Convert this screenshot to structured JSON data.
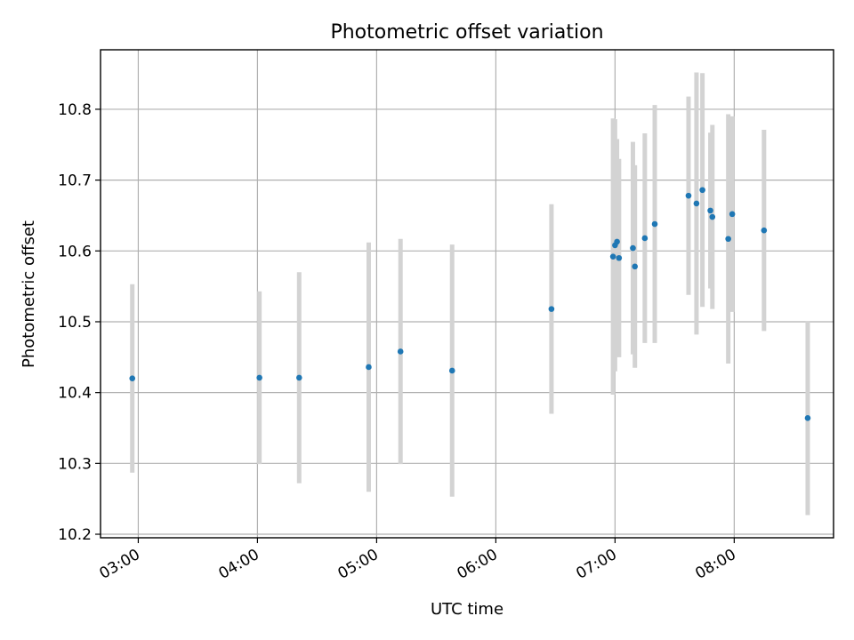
{
  "chart_data": {
    "type": "scatter",
    "title": "Photometric offset variation",
    "xlabel": "UTC time",
    "ylabel": "Photometric offset",
    "xlim": [
      "02:41",
      "08:50"
    ],
    "ylim": [
      10.195,
      10.884
    ],
    "grid": true,
    "x_ticks": [
      "03:00",
      "04:00",
      "05:00",
      "06:00",
      "07:00",
      "08:00"
    ],
    "y_ticks": [
      10.2,
      10.3,
      10.4,
      10.5,
      10.6,
      10.7,
      10.8
    ],
    "point_color": "#1f77b4",
    "errorbar_color": "#d3d3d3",
    "series": [
      {
        "x": [
          "02:57",
          "04:01",
          "04:21",
          "04:56",
          "05:12",
          "05:38",
          "06:28",
          "06:59",
          "07:00",
          "07:01",
          "07:02",
          "07:09",
          "07:10",
          "07:15",
          "07:20",
          "07:37",
          "07:41",
          "07:44",
          "07:48",
          "07:49",
          "07:57",
          "07:59",
          "08:15",
          "08:37"
        ],
        "y": [
          10.42,
          10.421,
          10.421,
          10.436,
          10.458,
          10.431,
          10.518,
          10.592,
          10.608,
          10.613,
          10.59,
          10.604,
          10.578,
          10.618,
          10.638,
          10.678,
          10.667,
          10.686,
          10.657,
          10.648,
          10.617,
          10.652,
          10.629,
          10.364
        ],
        "y_err": [
          0.133,
          0.122,
          0.149,
          0.176,
          0.159,
          0.178,
          0.148,
          0.195,
          0.178,
          0.145,
          0.14,
          0.15,
          0.143,
          0.148,
          0.168,
          0.14,
          0.185,
          0.165,
          0.11,
          0.13,
          0.176,
          0.138,
          0.142,
          0.137
        ]
      }
    ]
  }
}
